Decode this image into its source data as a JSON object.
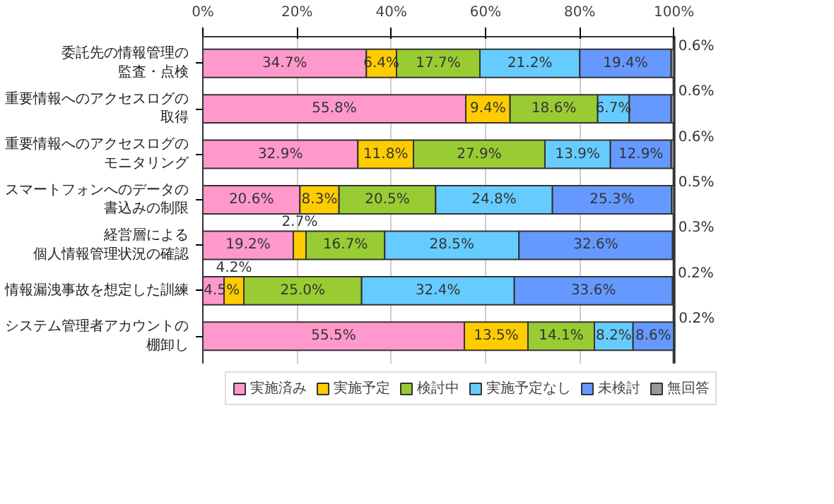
{
  "chart_data": {
    "type": "bar",
    "orientation": "horizontal",
    "stacked": true,
    "categories": [
      "委託先の情報管理の監査・点検",
      "重要情報へのアクセスログの取得",
      "重要情報へのアクセスログのモニタリング",
      "スマートフォンへのデータの書込みの制限",
      "経営層による個人情報管理状況の確認",
      "情報漏洩事故を想定した訓練",
      "システム管理者アカウントの棚卸し"
    ],
    "series": [
      {
        "name": "実施済み",
        "color": "#ff99cc",
        "values": [
          34.7,
          55.8,
          32.9,
          20.6,
          19.2,
          4.5,
          55.5
        ],
        "value_labels": [
          "34.7%",
          "55.8%",
          "32.9%",
          "20.6%",
          "19.2%",
          "4.5%",
          "55.5%"
        ]
      },
      {
        "name": "実施予定",
        "color": "#ffcc00",
        "values": [
          6.4,
          9.4,
          11.8,
          8.3,
          2.7,
          4.2,
          13.5
        ],
        "value_labels": [
          "6.4%",
          "9.4%",
          "11.8%",
          "8.3%",
          "2.7%",
          "4.2%",
          "13.5%"
        ]
      },
      {
        "name": "検討中",
        "color": "#99cc33",
        "values": [
          17.7,
          18.6,
          27.9,
          20.5,
          16.7,
          25.0,
          14.1
        ],
        "value_labels": [
          "17.7%",
          "18.6%",
          "27.9%",
          "20.5%",
          "16.7%",
          "25.0%",
          "14.1%"
        ]
      },
      {
        "name": "実施予定なし",
        "color": "#66ccff",
        "values": [
          21.2,
          6.7,
          13.9,
          24.8,
          28.5,
          32.4,
          8.2
        ],
        "value_labels": [
          "21.2%",
          "6.7%",
          "13.9%",
          "24.8%",
          "28.5%",
          "32.4%",
          "8.2%"
        ]
      },
      {
        "name": "未検討",
        "color": "#6699ff",
        "values": [
          19.4,
          8.9,
          12.9,
          25.3,
          32.6,
          33.6,
          8.6
        ],
        "value_labels": [
          "19.4%",
          null,
          "12.9%",
          "25.3%",
          "32.6%",
          "33.6%",
          "8.6%"
        ]
      },
      {
        "name": "無回答",
        "color": "#999999",
        "values": [
          0.6,
          0.6,
          0.6,
          0.5,
          0.3,
          0.2,
          0.2
        ],
        "value_labels": [
          "0.6%",
          "0.6%",
          "0.6%",
          "0.5%",
          "0.3%",
          "0.2%",
          "0.2%"
        ]
      }
    ],
    "xlim": [
      0,
      100
    ],
    "xticks": [
      {
        "value": 0,
        "label": "0%"
      },
      {
        "value": 20,
        "label": "20%"
      },
      {
        "value": 40,
        "label": "40%"
      },
      {
        "value": 60,
        "label": "60%"
      },
      {
        "value": 80,
        "label": "80%"
      },
      {
        "value": 100,
        "label": "100%"
      }
    ],
    "grid": "x",
    "legend": "bottom"
  }
}
